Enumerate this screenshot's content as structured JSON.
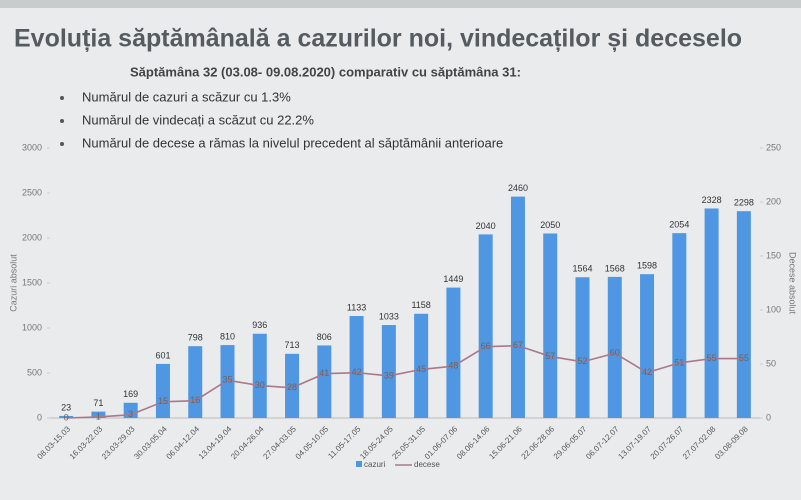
{
  "header": {
    "title": "Evoluția săptămânală a cazurilor noi, vindecaților și deceselo",
    "subtitle": "Săptămâna 32 (03.08- 09.08.2020) comparativ cu săptămâna 31:",
    "bullets": [
      "Numărul de cazuri a scăzur cu 1.3%",
      "Numărul de vindecați a scăzut cu 22.2%",
      "Numărul de decese a rămas la nivelul precedent al săptămânii anterioare"
    ]
  },
  "chart_data": {
    "type": "bar-line",
    "categories": [
      "08.03-15.03",
      "16.03-22.03",
      "23.03-29.03",
      "30.03-05.04",
      "06.04-12.04",
      "13.04-19.04",
      "20.04-26.04",
      "27.04-03.05",
      "04.05-10.05",
      "11.05-17.05",
      "18.05-24.05",
      "25.05-31.05",
      "01.06-07.06",
      "08.06-14.06",
      "15.06-21.06",
      "22.06-28.06",
      "29.06-05.07",
      "06.07-12.07",
      "13.07-19.07",
      "20.07-26.07",
      "27.07-02.08",
      "03.08-09.08"
    ],
    "series": [
      {
        "name": "cazuri",
        "color": "#4f97e3",
        "values": [
          23,
          71,
          169,
          601,
          798,
          810,
          936,
          713,
          806,
          1133,
          1033,
          1158,
          1449,
          2040,
          2460,
          2050,
          1564,
          1568,
          1598,
          2054,
          2328,
          2298
        ]
      },
      {
        "name": "decese",
        "color": "#a9788a",
        "axis": "y2",
        "values": [
          0,
          1,
          3,
          15,
          16,
          35,
          30,
          28,
          41,
          42,
          39,
          45,
          48,
          66,
          67,
          57,
          52,
          60,
          42,
          51,
          55,
          55
        ]
      }
    ],
    "ylabel": "Cazuri absolut",
    "y2label": "Decese absolut",
    "ylim": [
      0,
      3000
    ],
    "yticks": [
      0,
      500,
      1000,
      1500,
      2000,
      2500,
      3000
    ],
    "y2lim": [
      0,
      250
    ],
    "y2ticks": [
      0,
      50,
      100,
      150,
      200,
      250
    ]
  }
}
